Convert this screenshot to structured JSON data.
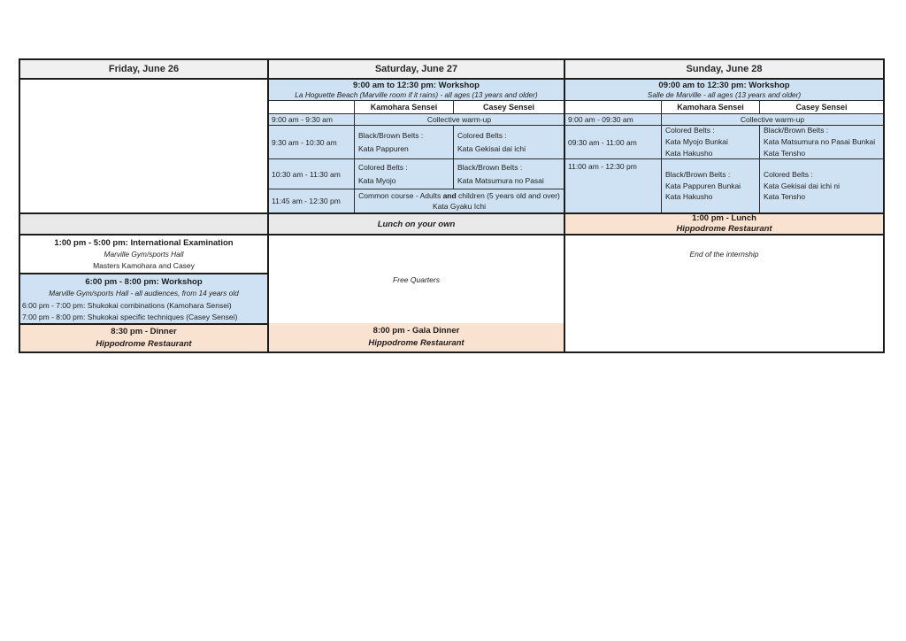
{
  "colors": {
    "blue": "#cfe2f3",
    "orange": "#fae2d1",
    "header_gray": "#f0f0f0",
    "lunch_gray": "#e9e9e9",
    "border": "#1c1c1c"
  },
  "days": {
    "friday": {
      "header": "Friday, June 26",
      "exam": {
        "line1": "1:00 pm - 5:00 pm: International Examination",
        "line2": "Marville Gym/sports Hall",
        "line3": "Masters Kamohara and Casey"
      },
      "workshop": {
        "title": "6:00 pm - 8:00 pm: Workshop",
        "subtitle": "Marville Gym/sports Hall - all audiences, from 14 years old",
        "item1": "6:00 pm - 7:00 pm: Shukokai combinations (Kamohara Sensei)",
        "item2": "7:00 pm - 8:00 pm: Shukokai specific techniques (Casey Sensei)"
      },
      "dinner": {
        "title": "8:30 pm - Dinner",
        "venue": "Hippodrome Restaurant"
      }
    },
    "saturday": {
      "header": "Saturday, June 27",
      "workshop_title": "9:00 am to 12:30 pm: Workshop",
      "workshop_subtitle": "La Hoguette Beach (Marville room if it rains) - all ages (13 years and older)",
      "sensei1": "Kamohara Sensei",
      "sensei2": "Casey Sensei",
      "warmup_time": "9:00 am - 9:30 am",
      "warmup_label": "Collective warm-up",
      "rowA": {
        "time": "9:30 am - 10:30 am",
        "kamohara": [
          "Black/Brown Belts :",
          "Kata Pappuren"
        ],
        "casey": [
          "Colored Belts :",
          "Kata Gekisai dai ichi"
        ]
      },
      "rowB": {
        "time": "10:30 am - 11:30 am",
        "kamohara": [
          "Colored Belts :",
          "Kata Myojo"
        ],
        "casey": [
          "Black/Brown Belts :",
          "Kata Matsumura no Pasai"
        ]
      },
      "rowC": {
        "time": "11:45 am - 12:30 pm",
        "line1_pre": "Common course - Adults ",
        "line1_bold": "and",
        "line1_post": " children (5 years old and over)",
        "line2": "Kata Gyaku Ichi"
      },
      "lunch": "Lunch on your own",
      "free": "Free Quarters",
      "gala": {
        "title": "8:00 pm - Gala Dinner",
        "venue": "Hippodrome Restaurant"
      }
    },
    "sunday": {
      "header": "Sunday, June 28",
      "workshop_title": "09:00 am to 12:30 pm: Workshop",
      "workshop_subtitle": "Salle de Marville - all ages (13 years and older)",
      "sensei1": "Kamohara Sensei",
      "sensei2": "Casey Sensei",
      "warmup_time": "9:00 am - 09:30 am",
      "warmup_label": "Collective warm-up",
      "rowA": {
        "time": "09:30 am - 11:00 am",
        "kamohara": [
          "Colored Belts :",
          "Kata Myojo Bunkai",
          "Kata Hakusho"
        ],
        "casey": [
          "Black/Brown Belts :",
          "Kata Matsumura no Pasai Bunkai",
          "Kata Tensho"
        ]
      },
      "rowB": {
        "time": "11:00 am - 12:30 pm",
        "kamohara": [
          "Black/Brown Belts :",
          "Kata Pappuren Bunkai",
          "Kata Hakusho"
        ],
        "casey": [
          "Colored Belts :",
          "Kata Gekisai dai ichi ni",
          "Kata Tensho"
        ]
      },
      "lunch": {
        "title": "1:00 pm - Lunch",
        "venue": "Hippodrome Restaurant"
      },
      "end_note": "End of the internship"
    }
  }
}
